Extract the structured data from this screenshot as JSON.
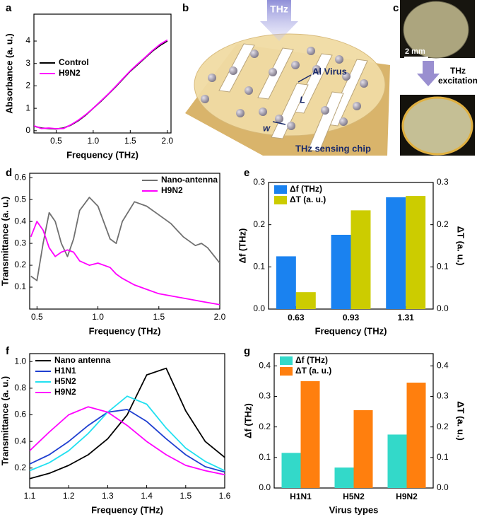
{
  "chart_data": [
    {
      "type": "line",
      "panel": "a",
      "x_label": "Frequency (THz)",
      "y_label": "Absorbance (a. u.)",
      "legend": "center-left",
      "x": [
        0.2,
        0.3,
        0.4,
        0.5,
        0.6,
        0.7,
        0.8,
        0.9,
        1.0,
        1.1,
        1.2,
        1.3,
        1.4,
        1.5,
        1.6,
        1.7,
        1.8,
        1.9,
        2.0
      ],
      "series": [
        {
          "name": "Control",
          "color": "#000000",
          "values": [
            0.2,
            0.12,
            0.1,
            0.08,
            0.12,
            0.25,
            0.45,
            0.7,
            1.0,
            1.3,
            1.62,
            1.95,
            2.3,
            2.65,
            2.95,
            3.25,
            3.55,
            3.8,
            4.0
          ]
        },
        {
          "name": "H9N2",
          "color": "#ff00ff",
          "values": [
            0.22,
            0.1,
            0.12,
            0.09,
            0.1,
            0.27,
            0.47,
            0.72,
            1.0,
            1.32,
            1.63,
            1.97,
            2.32,
            2.67,
            2.98,
            3.27,
            3.58,
            3.85,
            4.05
          ]
        }
      ],
      "xlim": [
        0.2,
        2.05
      ],
      "ylim": [
        -0.1,
        5.2
      ],
      "xticks": [
        0.5,
        {
          "value": 1.0,
          "label": "1.0"
        },
        1.5,
        {
          "value": 2.0,
          "label": "2.0"
        }
      ],
      "yticks": [
        0,
        1,
        2,
        3,
        4
      ]
    },
    {
      "type": "line",
      "panel": "d",
      "x_label": "Frequency (THz)",
      "y_label": "Transmittance (a. u.)",
      "legend": "top-right",
      "x": [
        0.45,
        0.5,
        0.55,
        0.6,
        0.65,
        0.7,
        0.75,
        0.8,
        0.85,
        0.93,
        1.0,
        1.1,
        1.15,
        1.2,
        1.3,
        1.4,
        1.5,
        1.6,
        1.7,
        1.8,
        1.85,
        1.9,
        2.0
      ],
      "series": [
        {
          "name": "Nano-antenna",
          "color": "#707070",
          "values": [
            0.15,
            0.13,
            0.3,
            0.44,
            0.4,
            0.3,
            0.24,
            0.32,
            0.45,
            0.51,
            0.47,
            0.32,
            0.3,
            0.4,
            0.49,
            0.47,
            0.43,
            0.39,
            0.33,
            0.29,
            0.3,
            0.28,
            0.21
          ]
        },
        {
          "name": "H9N2",
          "color": "#ff00ff",
          "values": [
            0.33,
            0.4,
            0.36,
            0.28,
            0.24,
            0.26,
            0.27,
            0.26,
            0.22,
            0.2,
            0.21,
            0.19,
            0.16,
            0.14,
            0.11,
            0.09,
            0.07,
            0.06,
            0.05,
            0.04,
            0.035,
            0.03,
            0.02
          ]
        }
      ],
      "xlim": [
        0.44,
        2.0
      ],
      "ylim": [
        0,
        0.62
      ],
      "xticks": [
        0.5,
        {
          "value": 1.0,
          "label": "1.0"
        },
        1.5,
        {
          "value": 2.0,
          "label": "2.0"
        }
      ],
      "yticks": [
        0.1,
        0.2,
        0.3,
        0.4,
        0.5,
        0.6
      ]
    },
    {
      "type": "bar",
      "panel": "e",
      "x_label": "Frequency (THz)",
      "y_label": "Δf (THz)",
      "y2_label": "ΔT (a. u.)",
      "legend": "top-left",
      "categories": [
        "0.63",
        "0.93",
        "1.31"
      ],
      "series": [
        {
          "name": "Δf (THz)",
          "color": "#1a82f0",
          "values": [
            0.125,
            0.176,
            0.265
          ]
        },
        {
          "name": "ΔT (a. u.)",
          "color": "#cccc00",
          "axis": "y2",
          "values": [
            0.04,
            0.234,
            0.268
          ]
        }
      ],
      "ylim": [
        0,
        0.3
      ],
      "y2lim": [
        0,
        0.3
      ],
      "yticks": [
        {
          "value": 0,
          "label": "0.0"
        },
        0.1,
        0.2,
        0.3
      ],
      "y2ticks": [
        {
          "value": 0,
          "label": "0.0"
        },
        0.1,
        0.2,
        0.3
      ]
    },
    {
      "type": "line",
      "panel": "f",
      "x_label": "Frequency (THz)",
      "y_label": "Transmittance (a. u.)",
      "legend": "top-left",
      "x": [
        1.1,
        1.15,
        1.2,
        1.25,
        1.3,
        1.35,
        1.4,
        1.45,
        1.5,
        1.55,
        1.6
      ],
      "series": [
        {
          "name": "Nano antenna",
          "color": "#000000",
          "values": [
            0.12,
            0.16,
            0.22,
            0.3,
            0.42,
            0.6,
            0.9,
            0.95,
            0.63,
            0.4,
            0.28
          ]
        },
        {
          "name": "H1N1",
          "color": "#1f3fd0",
          "values": [
            0.23,
            0.3,
            0.4,
            0.52,
            0.62,
            0.64,
            0.55,
            0.42,
            0.3,
            0.21,
            0.17
          ]
        },
        {
          "name": "H5N2",
          "color": "#22e0f0",
          "values": [
            0.18,
            0.24,
            0.33,
            0.46,
            0.62,
            0.74,
            0.68,
            0.5,
            0.35,
            0.25,
            0.18
          ]
        },
        {
          "name": "H9N2",
          "color": "#ff00ff",
          "values": [
            0.33,
            0.47,
            0.6,
            0.66,
            0.62,
            0.52,
            0.4,
            0.3,
            0.22,
            0.18,
            0.15
          ]
        }
      ],
      "xlim": [
        1.1,
        1.6
      ],
      "ylim": [
        0.05,
        1.06
      ],
      "xticks": [
        1.1,
        1.2,
        1.3,
        1.4,
        1.5,
        1.6
      ],
      "yticks": [
        0.2,
        0.4,
        0.6,
        0.8,
        {
          "value": 1.0,
          "label": "1.0"
        }
      ]
    },
    {
      "type": "bar",
      "panel": "g",
      "x_label": "Virus types",
      "y_label": "Δf (THz)",
      "y2_label": "ΔT (a. u.)",
      "legend": "top-left",
      "categories": [
        "H1N1",
        "H5N2",
        "H9N2"
      ],
      "series": [
        {
          "name": "Δf (THz)",
          "color": "#33d9c9",
          "values": [
            0.115,
            0.067,
            0.175
          ]
        },
        {
          "name": "ΔT (a. u.)",
          "color": "#ff7f0e",
          "axis": "y2",
          "values": [
            0.35,
            0.255,
            0.345
          ]
        }
      ],
      "ylim": [
        0,
        0.44
      ],
      "y2lim": [
        0,
        0.44
      ],
      "yticks": [
        {
          "value": 0,
          "label": "0.0"
        },
        0.1,
        0.2,
        0.3,
        0.4
      ],
      "y2ticks": [
        {
          "value": 0,
          "label": "0.0"
        },
        0.1,
        0.2,
        0.3,
        0.4
      ]
    }
  ],
  "schematic": {
    "panel": "b",
    "beam": "THz",
    "virus": "Al Virus",
    "length": "L",
    "width": "w",
    "chip": "THz sensing chip"
  },
  "photos": {
    "panel": "c",
    "scale_bar": "2 mm",
    "excitation": [
      "THz",
      "excitation"
    ]
  }
}
